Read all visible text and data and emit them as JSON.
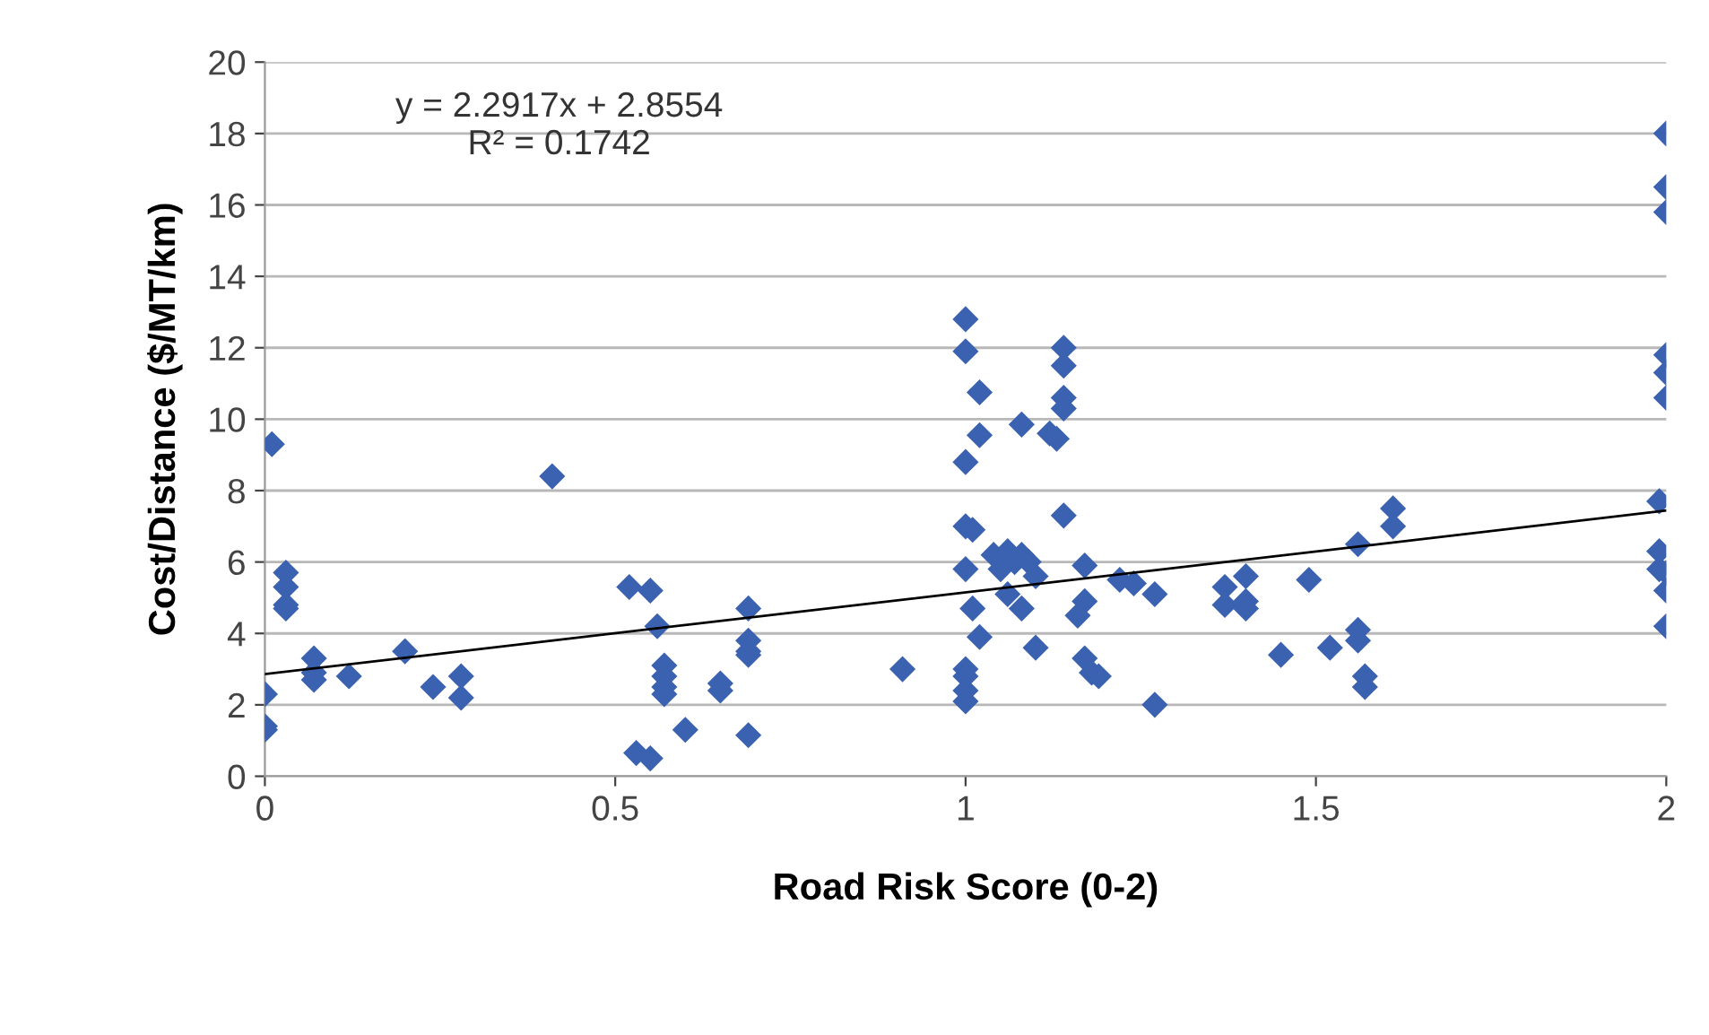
{
  "chart_data": {
    "type": "scatter",
    "xlabel": "Road Risk Score (0-2)",
    "ylabel": "Cost/Distance ($/MT/km)",
    "xlim": [
      0,
      2
    ],
    "xticks": [
      0,
      0.5,
      1,
      1.5,
      2
    ],
    "ylim": [
      0,
      20
    ],
    "yticks": [
      0,
      2,
      4,
      6,
      8,
      10,
      12,
      14,
      16,
      18,
      20
    ],
    "grid": "y",
    "marker": "diamond",
    "legend": false,
    "annotations": [
      "y = 2.2917x + 2.8554\nR² = 0.1742"
    ],
    "series": [
      {
        "color": "#3a62b0",
        "x": [
          0.01,
          0.0,
          0.0,
          0.0,
          0.03,
          0.03,
          0.03,
          0.03,
          0.07,
          0.07,
          0.07,
          0.12,
          0.2,
          0.24,
          0.28,
          0.28,
          0.41,
          0.52,
          0.55,
          0.56,
          0.57,
          0.57,
          0.57,
          0.57,
          0.53,
          0.55,
          0.6,
          0.65,
          0.65,
          0.69,
          0.69,
          0.69,
          0.69,
          0.69,
          0.91,
          1.0,
          1.0,
          1.0,
          1.0,
          1.0,
          1.0,
          1.0,
          1.0,
          1.0,
          1.02,
          1.02,
          1.02,
          1.01,
          1.01,
          1.04,
          1.05,
          1.06,
          1.07,
          1.08,
          1.09,
          1.1,
          1.06,
          1.08,
          1.1,
          1.08,
          1.12,
          1.13,
          1.14,
          1.14,
          1.14,
          1.14,
          1.14,
          1.17,
          1.17,
          1.16,
          1.17,
          1.18,
          1.19,
          1.22,
          1.24,
          1.27,
          1.27,
          1.37,
          1.37,
          1.4,
          1.4,
          1.4,
          1.45,
          1.49,
          1.52,
          1.56,
          1.56,
          1.57,
          1.57,
          1.56,
          1.61,
          1.61,
          2.0,
          2.0,
          2.0,
          2.0,
          2.0,
          2.0,
          1.99,
          1.99,
          1.99,
          2.0,
          2.0,
          2.0
        ],
        "values": [
          9.3,
          2.3,
          1.4,
          1.3,
          5.7,
          5.3,
          4.8,
          4.7,
          3.3,
          2.9,
          2.7,
          2.8,
          3.5,
          2.5,
          2.8,
          2.2,
          8.4,
          5.3,
          5.2,
          4.2,
          3.1,
          2.8,
          2.5,
          2.3,
          0.65,
          0.5,
          1.3,
          2.6,
          2.4,
          4.7,
          3.8,
          3.5,
          3.4,
          1.15,
          3.0,
          3.0,
          2.8,
          2.4,
          2.1,
          5.8,
          7.0,
          8.8,
          12.8,
          11.9,
          10.75,
          9.55,
          3.9,
          4.7,
          6.9,
          6.2,
          5.8,
          6.3,
          6.0,
          6.2,
          6.0,
          5.6,
          5.1,
          4.7,
          3.6,
          9.85,
          9.6,
          9.45,
          12.0,
          11.5,
          10.6,
          10.3,
          7.3,
          5.9,
          4.9,
          4.5,
          3.3,
          2.9,
          2.8,
          5.5,
          5.4,
          5.1,
          2.0,
          5.3,
          4.8,
          4.9,
          4.7,
          5.6,
          3.4,
          5.5,
          3.6,
          4.1,
          3.8,
          2.8,
          2.5,
          6.5,
          7.5,
          7.0,
          18.0,
          16.5,
          15.8,
          11.8,
          11.3,
          10.6,
          7.7,
          6.3,
          5.8,
          5.7,
          5.2,
          4.2
        ]
      },
      {
        "type": "line",
        "color": "#000000",
        "x": [
          0,
          2
        ],
        "values": [
          2.86,
          7.44
        ],
        "marker": "none"
      }
    ]
  }
}
